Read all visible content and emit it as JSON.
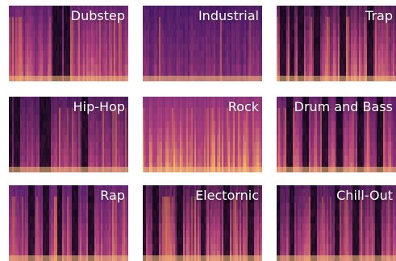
{
  "tiles": [
    {
      "label": "Dubstep"
    },
    {
      "label": "Industrial"
    },
    {
      "label": "Trap"
    },
    {
      "label": "Hip-Hop"
    },
    {
      "label": "Rock"
    },
    {
      "label": "Drum and Bass"
    },
    {
      "label": "Rap"
    },
    {
      "label": "Electornic"
    },
    {
      "label": "Chill-Out"
    }
  ]
}
